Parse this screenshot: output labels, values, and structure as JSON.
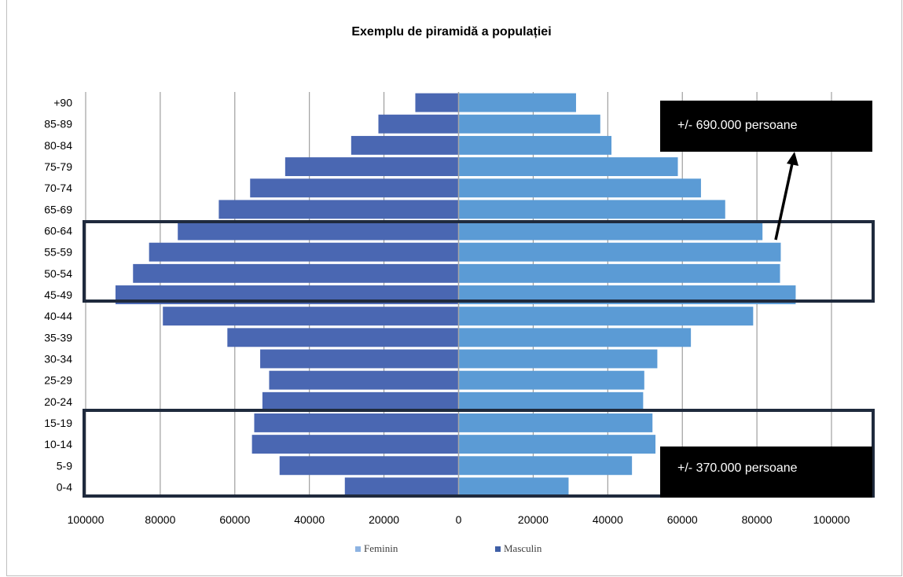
{
  "chart_data": {
    "type": "bar",
    "orientation": "horizontal",
    "layout": "population-pyramid",
    "title": "Exemplu de piramidă a populației",
    "categories": [
      "0-4",
      "5-9",
      "10-14",
      "15-19",
      "20-24",
      "25-29",
      "30-34",
      "35-39",
      "40-44",
      "45-49",
      "50-54",
      "55-59",
      "60-64",
      "65-69",
      "70-74",
      "75-79",
      "80-84",
      "85-89",
      "+90"
    ],
    "series": [
      {
        "name": "Feminin",
        "color": "#5b9bd5",
        "side": "right",
        "values": [
          29500,
          46500,
          52800,
          52000,
          49500,
          49800,
          53300,
          62300,
          79000,
          90400,
          86200,
          86400,
          81500,
          71500,
          65000,
          58800,
          41000,
          38000,
          31500
        ]
      },
      {
        "name": "Masculin",
        "color": "#4a67b2",
        "side": "left",
        "values": [
          30500,
          48000,
          55400,
          54800,
          52600,
          50800,
          53200,
          62000,
          79300,
          92000,
          87300,
          83000,
          75300,
          64300,
          55900,
          46500,
          28800,
          21500,
          11600
        ]
      }
    ],
    "xlim": [
      -100000,
      100000
    ],
    "xticks": [
      "100000",
      "80000",
      "60000",
      "40000",
      "20000",
      "0",
      "20000",
      "40000",
      "60000",
      "80000",
      "100000"
    ],
    "grid": true,
    "legend": "bottom",
    "annotations": [
      {
        "text": "+/- 690.000 persoane"
      },
      {
        "text": "+/- 370.000 persoane"
      }
    ]
  },
  "legend_items": [
    "Feminin",
    "Masculin"
  ]
}
